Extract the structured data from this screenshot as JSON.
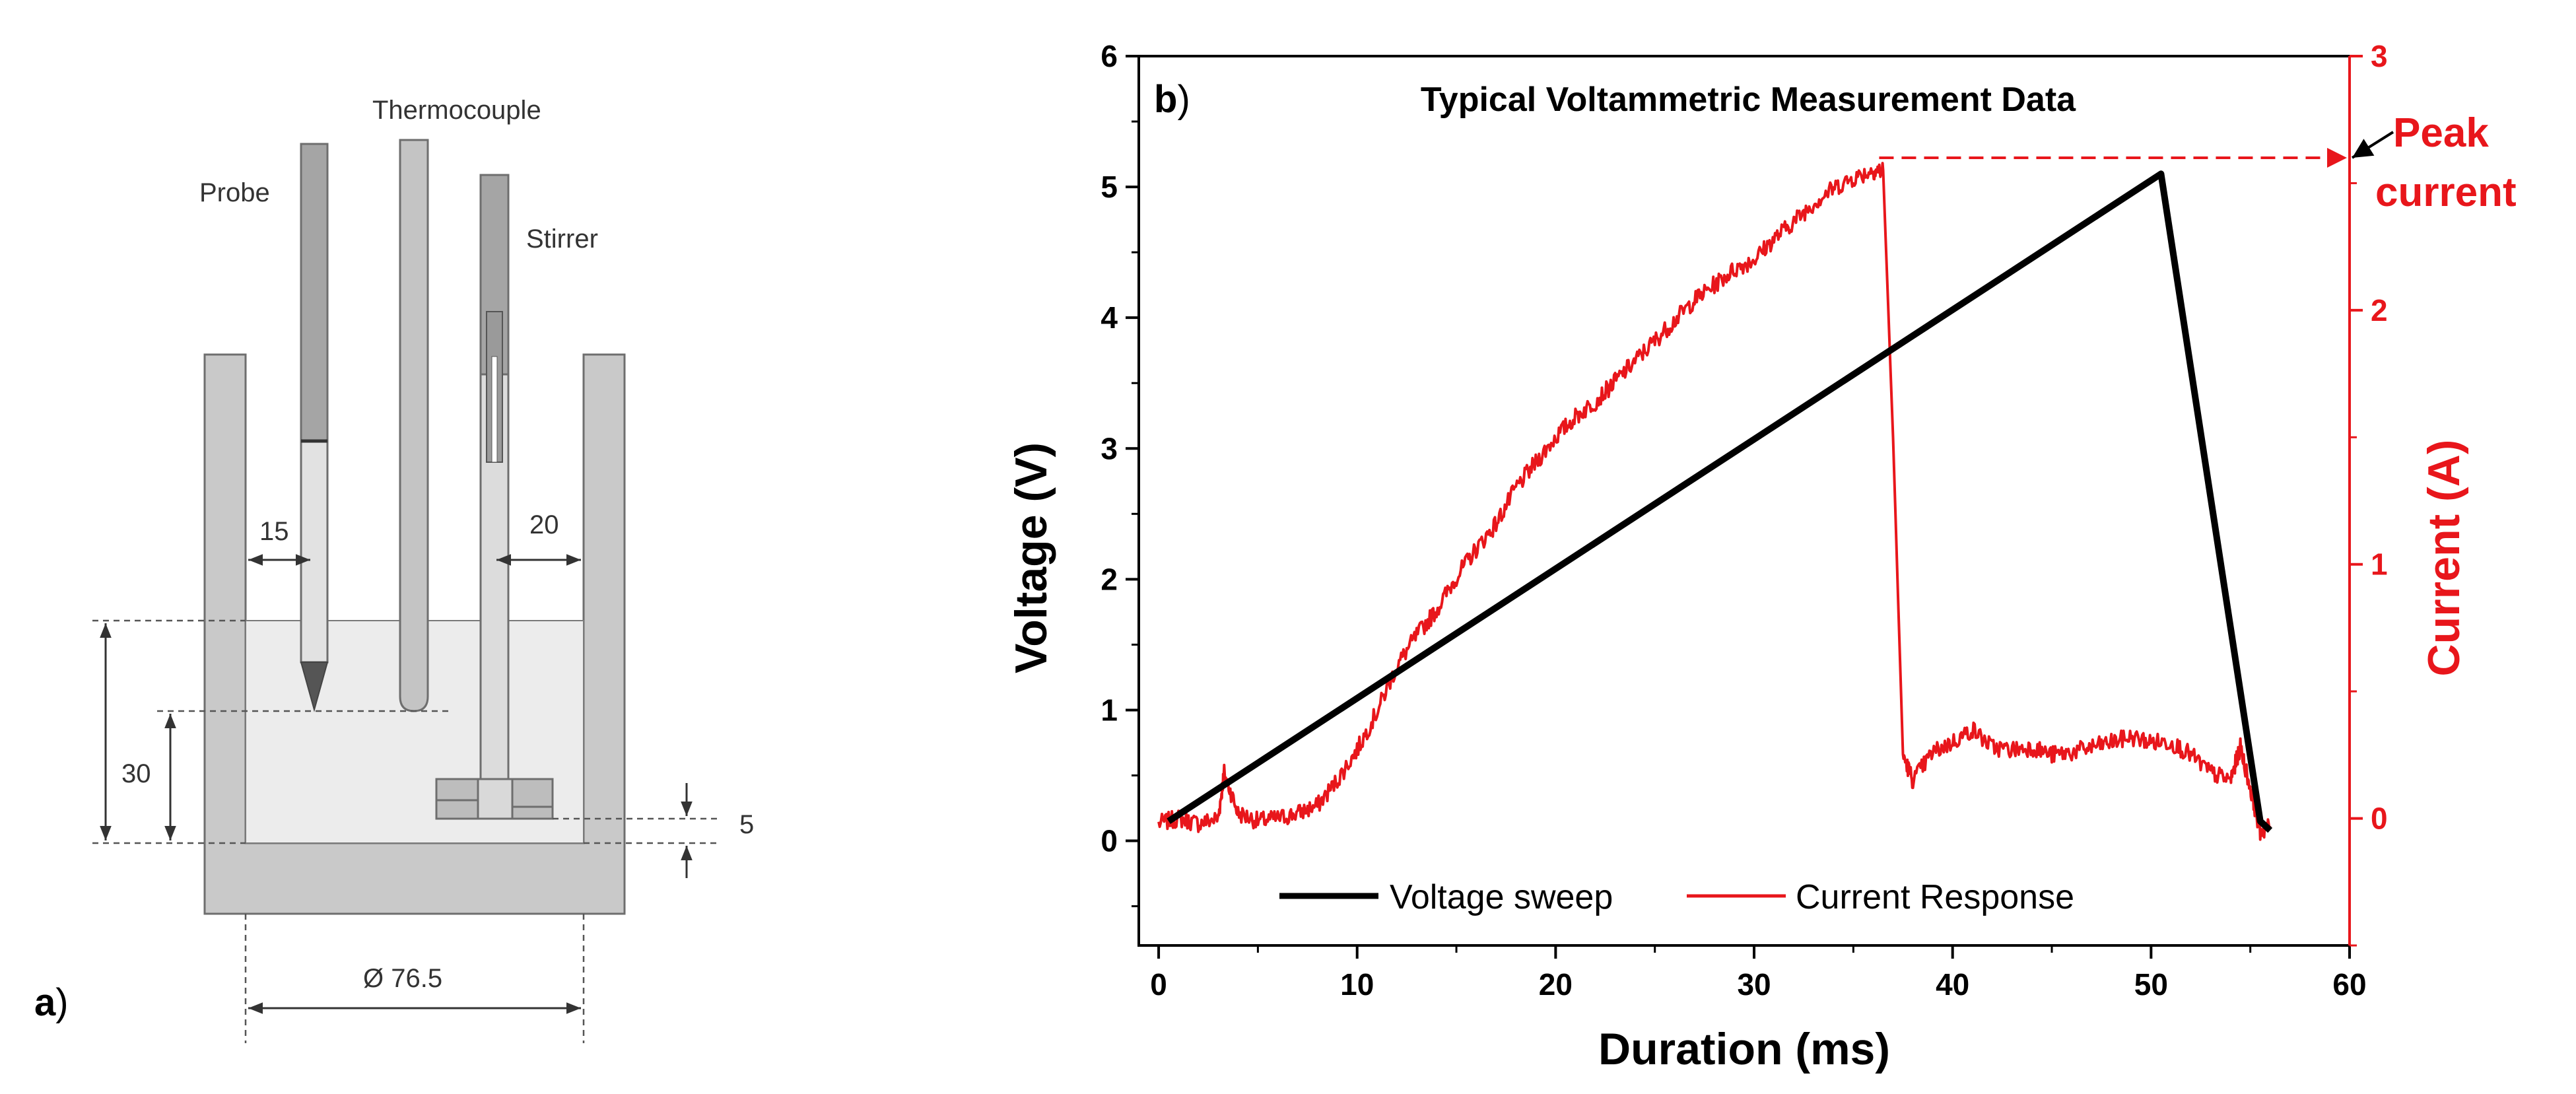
{
  "panel_a": {
    "letter": "a",
    "letter_paren": ")",
    "labels": {
      "probe": "Probe",
      "thermocouple": "Thermocouple",
      "stirrer": "Stirrer"
    },
    "dimensions": {
      "left_gap": "15",
      "right_gap": "20",
      "liquid_depth": "30",
      "stirrer_offset": "5",
      "diameter": "Ø   76.5"
    }
  },
  "panel_b": {
    "letter": "b",
    "letter_paren": ")",
    "annotation": {
      "line1": "Peak",
      "line2": "current"
    },
    "colors": {
      "voltage": "#000000",
      "current": "#e8161b"
    }
  },
  "chart_data": {
    "type": "line",
    "title": "Typical Voltammetric Measurement Data",
    "xlabel": "Duration (ms)",
    "ylabel": "Voltage (V)",
    "y2label": "Current (A)",
    "xlim": [
      -1,
      60
    ],
    "ylim": [
      -0.8,
      6
    ],
    "y2lim": [
      -0.5,
      3
    ],
    "xticks": [
      0,
      10,
      20,
      30,
      40,
      50,
      60
    ],
    "yticks": [
      0,
      1,
      2,
      3,
      4,
      5,
      6
    ],
    "y2ticks": [
      0,
      1,
      2,
      3
    ],
    "legend_position": "bottom-center",
    "series": [
      {
        "name": "Voltage sweep",
        "axis": "left",
        "color": "#000000",
        "x": [
          0.5,
          50.5,
          55.5,
          56
        ],
        "y": [
          0.15,
          5.1,
          0.15,
          0.08
        ]
      },
      {
        "name": "Current Response",
        "axis": "right",
        "color": "#e8161b",
        "x": [
          0,
          1,
          2,
          3,
          3.3,
          4,
          5,
          6,
          7,
          8,
          9,
          10,
          11,
          12,
          13,
          14,
          15,
          16,
          17,
          18,
          19,
          20,
          21,
          22,
          23,
          24,
          25,
          26,
          27,
          28,
          29,
          30,
          31,
          32,
          33,
          34,
          35,
          36,
          36.5,
          37,
          37.5,
          38,
          39,
          40,
          41,
          42,
          43,
          44,
          45,
          46,
          47,
          48,
          49,
          50,
          51,
          52,
          53,
          54,
          54.5,
          55,
          55.5,
          56
        ],
        "y": [
          -0.02,
          0.0,
          -0.02,
          0.0,
          0.18,
          0.02,
          -0.01,
          0.0,
          0.02,
          0.05,
          0.15,
          0.27,
          0.42,
          0.6,
          0.72,
          0.82,
          0.95,
          1.06,
          1.16,
          1.3,
          1.4,
          1.5,
          1.58,
          1.64,
          1.72,
          1.8,
          1.88,
          1.96,
          2.04,
          2.1,
          2.16,
          2.2,
          2.28,
          2.35,
          2.42,
          2.48,
          2.52,
          2.55,
          2.55,
          1.5,
          0.25,
          0.15,
          0.26,
          0.3,
          0.35,
          0.28,
          0.27,
          0.28,
          0.25,
          0.26,
          0.28,
          0.3,
          0.32,
          0.3,
          0.3,
          0.25,
          0.18,
          0.15,
          0.28,
          0.12,
          -0.05,
          -0.03
        ]
      }
    ],
    "annotations": [
      {
        "text": "Peak current",
        "x": 36.3,
        "y2": 2.6
      }
    ]
  }
}
